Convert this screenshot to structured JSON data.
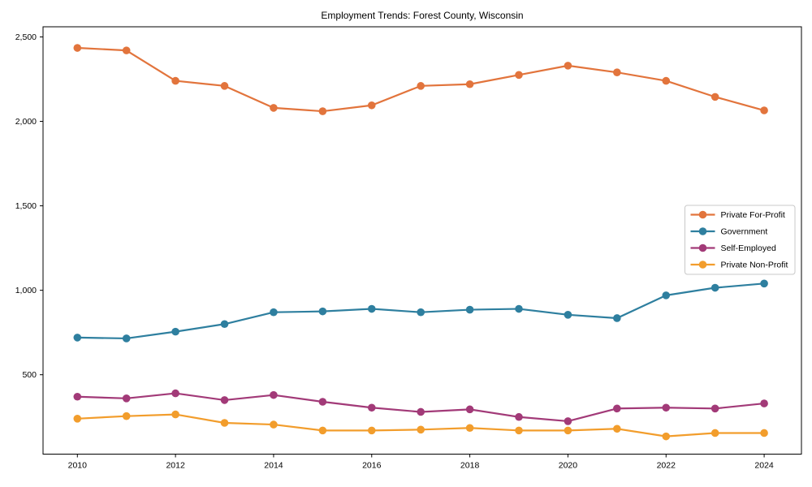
{
  "title": "Employment Trends: Forest County, Wisconsin",
  "chart_data": {
    "type": "line",
    "title": "Employment Trends: Forest County, Wisconsin",
    "xlabel": "",
    "ylabel": "",
    "x": [
      2010,
      2011,
      2012,
      2013,
      2014,
      2015,
      2016,
      2017,
      2018,
      2019,
      2020,
      2021,
      2022,
      2023,
      2024
    ],
    "series": [
      {
        "name": "Private For-Profit",
        "color": "#e2743c",
        "values": [
          2435,
          2420,
          2240,
          2210,
          2080,
          2060,
          2095,
          2210,
          2220,
          2275,
          2330,
          2290,
          2240,
          2145,
          2065
        ]
      },
      {
        "name": "Government",
        "color": "#2e7f9f",
        "values": [
          720,
          715,
          755,
          800,
          870,
          875,
          890,
          870,
          885,
          890,
          855,
          835,
          970,
          1015,
          1040
        ]
      },
      {
        "name": "Self-Employed",
        "color": "#a23a78",
        "values": [
          370,
          360,
          390,
          350,
          380,
          340,
          305,
          280,
          295,
          250,
          225,
          300,
          305,
          300,
          330
        ]
      },
      {
        "name": "Private Non-Profit",
        "color": "#f29d2c",
        "values": [
          240,
          255,
          265,
          215,
          205,
          170,
          170,
          175,
          185,
          170,
          170,
          180,
          135,
          155,
          155
        ]
      }
    ],
    "xticks": [
      2010,
      2012,
      2014,
      2016,
      2018,
      2020,
      2022,
      2024
    ],
    "xtick_labels": [
      "2010",
      "2012",
      "2014",
      "2016",
      "2018",
      "2020",
      "2022",
      "2024"
    ],
    "yticks": [
      500,
      1000,
      1500,
      2000,
      2500
    ],
    "ytick_labels": [
      "500",
      "1,000",
      "1,500",
      "2,000",
      "2,500"
    ],
    "xlim": [
      2009.3,
      2024.76
    ],
    "ylim": [
      30,
      2560
    ],
    "grid": false,
    "legend_position": "center-right",
    "legend_marker": "circle-line",
    "axis_color": "#000000",
    "background_color": "#ffffff"
  }
}
